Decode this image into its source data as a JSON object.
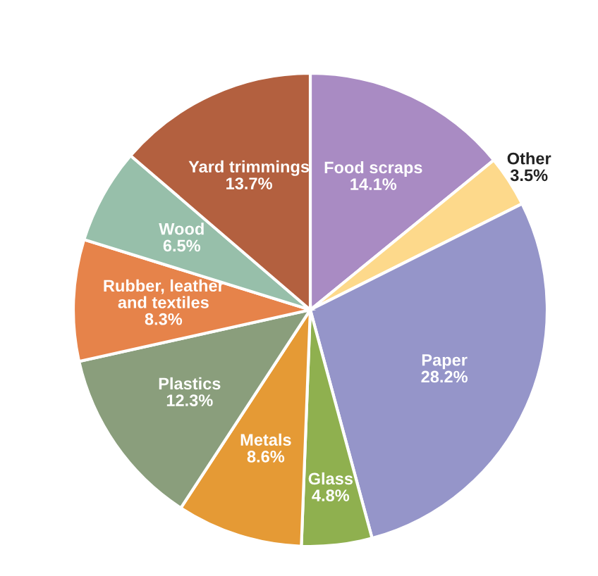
{
  "chart_data": {
    "type": "pie",
    "categories": [
      "Food scraps",
      "Other",
      "Paper",
      "Glass",
      "Metals",
      "Plastics",
      "Rubber, leather\nand textiles",
      "Wood",
      "Yard trimmings"
    ],
    "values": [
      14.1,
      3.5,
      28.2,
      4.8,
      8.6,
      12.3,
      8.3,
      6.5,
      13.7
    ],
    "value_labels": [
      "14.1%",
      "3.5%",
      "28.2%",
      "4.8%",
      "8.6%",
      "12.3%",
      "8.3%",
      "6.5%",
      "13.7%"
    ],
    "colors": [
      "#a98bc3",
      "#fdd98b",
      "#9595c9",
      "#8fb04f",
      "#e59a35",
      "#8a9e7c",
      "#e6834a",
      "#97bfaa",
      "#b3603f"
    ],
    "legend": false
  }
}
